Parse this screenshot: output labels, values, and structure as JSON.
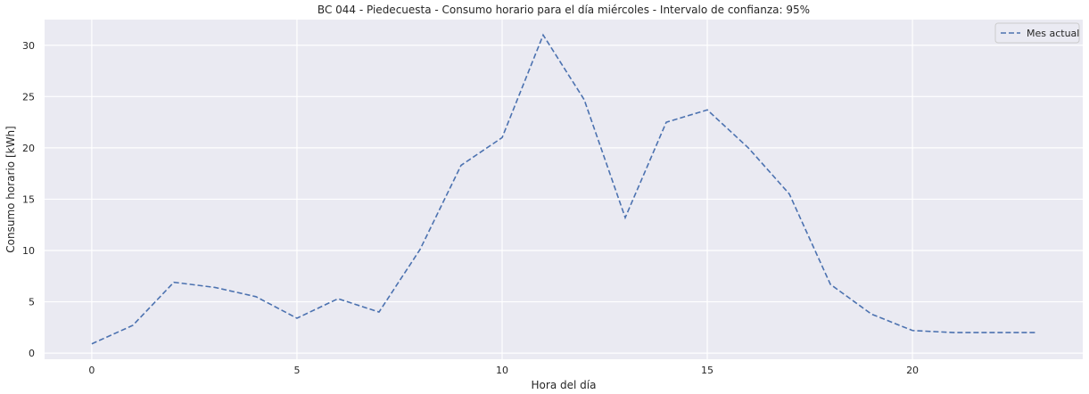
{
  "chart_data": {
    "type": "line",
    "title": "BC 044 - Piedecuesta - Consumo horario para el día miércoles - Intervalo de confianza: 95%",
    "xlabel": "Hora del día",
    "ylabel": "Consumo horario [kWh]",
    "xlim": [
      -1.15,
      24.15
    ],
    "ylim": [
      -0.6,
      32.5
    ],
    "xticks": [
      0,
      5,
      10,
      15,
      20
    ],
    "yticks": [
      0,
      5,
      10,
      15,
      20,
      25,
      30
    ],
    "grid": true,
    "legend_position": "top-right",
    "x": [
      0,
      1,
      2,
      3,
      4,
      5,
      6,
      7,
      8,
      9,
      10,
      11,
      12,
      13,
      14,
      15,
      16,
      17,
      18,
      19,
      20,
      21,
      22,
      23
    ],
    "series": [
      {
        "name": "Mes actual",
        "color": "#4c72b0",
        "line_style": "dashed",
        "values": [
          0.9,
          2.7,
          6.9,
          6.4,
          5.5,
          3.4,
          5.3,
          4.0,
          10.1,
          18.3,
          21.0,
          31.0,
          24.7,
          13.2,
          22.5,
          23.7,
          20.0,
          15.5,
          6.7,
          3.8,
          2.2,
          2.0,
          2.0,
          2.0
        ]
      }
    ],
    "colors": {
      "plot_background": "#eaeaf2",
      "grid": "#ffffff",
      "legend_border": "#cccccc"
    }
  }
}
